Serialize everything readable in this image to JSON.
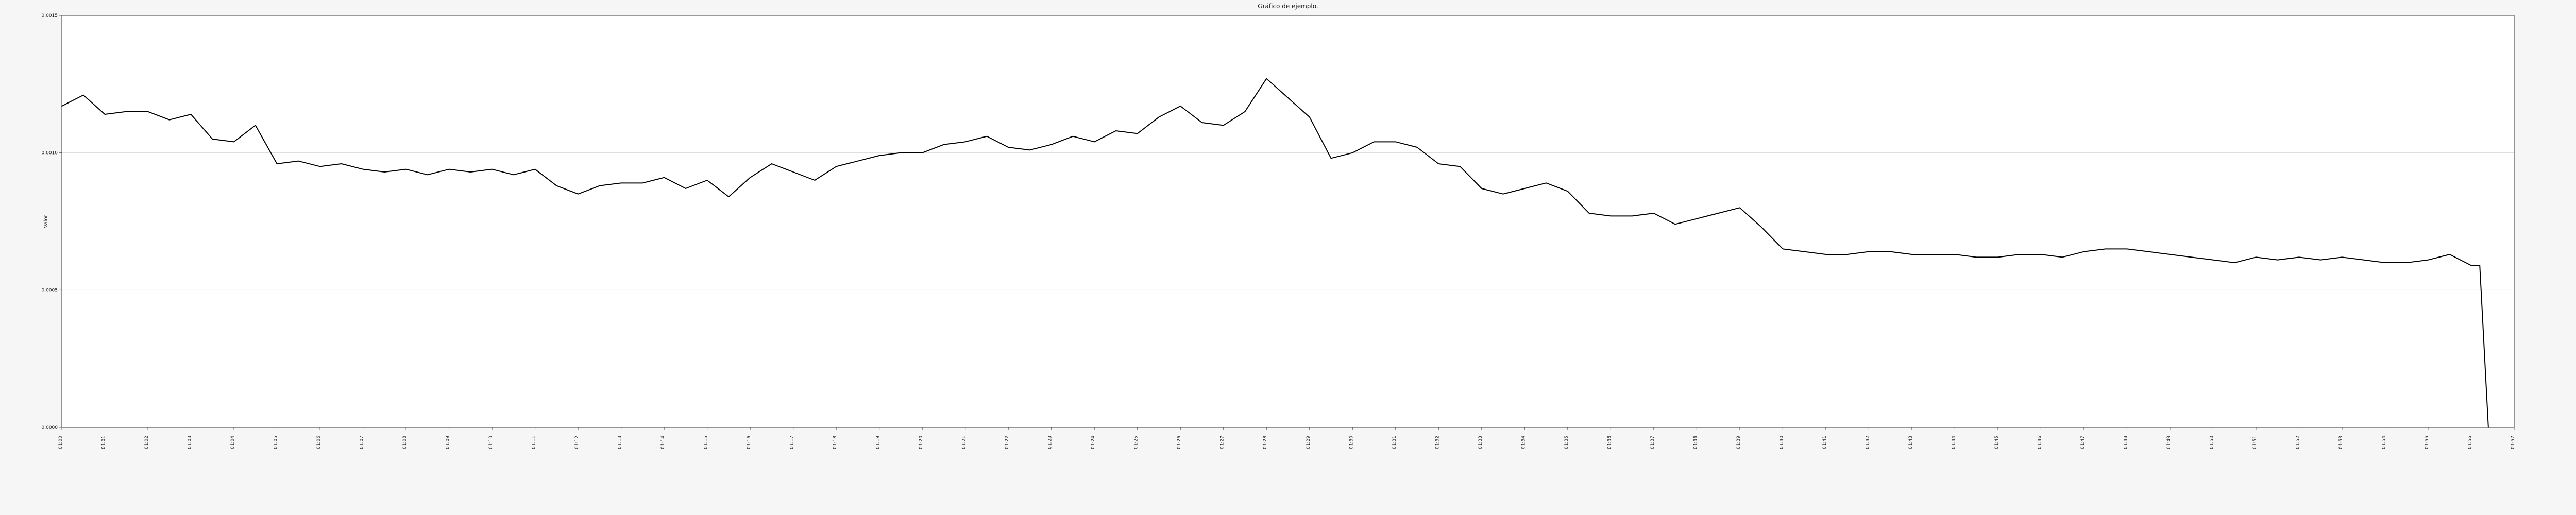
{
  "chart_data": {
    "type": "line",
    "title": "Gráfico de ejemplo.",
    "xlabel": "",
    "ylabel": "Valor",
    "xlim": [
      0,
      57
    ],
    "ylim": [
      0,
      0.0015
    ],
    "grid": true,
    "y_ticks": [
      "0.0000",
      "0.0005",
      "0.0010",
      "0.0015"
    ],
    "x_ticks": [
      "01:00",
      "01:01",
      "01:02",
      "01:03",
      "01:04",
      "01:05",
      "01:06",
      "01:07",
      "01:08",
      "01:09",
      "01:10",
      "01:11",
      "01:12",
      "01:13",
      "01:14",
      "01:15",
      "01:16",
      "01:17",
      "01:18",
      "01:19",
      "01:20",
      "01:21",
      "01:22",
      "01:23",
      "01:24",
      "01:25",
      "01:26",
      "01:27",
      "01:28",
      "01:29",
      "01:30",
      "01:31",
      "01:32",
      "01:33",
      "01:34",
      "01:35",
      "01:36",
      "01:37",
      "01:38",
      "01:39",
      "01:40",
      "01:41",
      "01:42",
      "01:43",
      "01:44",
      "01:45",
      "01:46",
      "01:47",
      "01:48",
      "01:49",
      "01:50",
      "01:51",
      "01:52",
      "01:53",
      "01:54",
      "01:55",
      "01:56",
      "01:57"
    ],
    "series": [
      {
        "name": "",
        "x": [
          0,
          0.5,
          1,
          1.5,
          2,
          2.5,
          3,
          3.5,
          4,
          4.5,
          5,
          5.5,
          6,
          6.5,
          7,
          7.5,
          8,
          8.5,
          9,
          9.5,
          10,
          10.5,
          11,
          11.5,
          12,
          12.5,
          13,
          13.5,
          14,
          14.5,
          15,
          15.5,
          16,
          16.5,
          17,
          17.5,
          18,
          18.5,
          19,
          19.5,
          20,
          20.5,
          21,
          21.5,
          22,
          22.5,
          23,
          23.5,
          24,
          24.5,
          25,
          25.5,
          26,
          26.5,
          27,
          27.5,
          28,
          28.5,
          29,
          29.5,
          30,
          30.5,
          31,
          31.5,
          32,
          32.5,
          33,
          33.5,
          34,
          34.5,
          35,
          35.5,
          36,
          36.5,
          37,
          37.5,
          38,
          38.5,
          39,
          39.5,
          40,
          40.5,
          41,
          41.5,
          42,
          42.5,
          43,
          43.5,
          44,
          44.5,
          45,
          45.5,
          46,
          46.5,
          47,
          47.5,
          48,
          48.5,
          49,
          49.5,
          50,
          50.5,
          51,
          51.5,
          52,
          52.5,
          53,
          53.5,
          54,
          54.5,
          55,
          55.5,
          56,
          56.2,
          56.4
        ],
        "values": [
          0.00117,
          0.00121,
          0.00114,
          0.00115,
          0.00115,
          0.00112,
          0.00114,
          0.00105,
          0.00104,
          0.0011,
          0.00096,
          0.00097,
          0.00095,
          0.00096,
          0.00094,
          0.00093,
          0.00094,
          0.00092,
          0.00094,
          0.00093,
          0.00094,
          0.00092,
          0.00094,
          0.00088,
          0.00085,
          0.00088,
          0.00089,
          0.00089,
          0.00091,
          0.00087,
          0.0009,
          0.00084,
          0.00091,
          0.00096,
          0.00093,
          0.0009,
          0.00095,
          0.00097,
          0.00099,
          0.001,
          0.001,
          0.00103,
          0.00104,
          0.00106,
          0.00102,
          0.00101,
          0.00103,
          0.00106,
          0.00104,
          0.00108,
          0.00107,
          0.00113,
          0.00117,
          0.00111,
          0.0011,
          0.00115,
          0.00127,
          0.0012,
          0.00113,
          0.00098,
          0.001,
          0.00104,
          0.00104,
          0.00102,
          0.00096,
          0.00095,
          0.00087,
          0.00085,
          0.00087,
          0.00089,
          0.00086,
          0.00078,
          0.00077,
          0.00077,
          0.00078,
          0.00074,
          0.00076,
          0.00078,
          0.0008,
          0.00073,
          0.00065,
          0.00064,
          0.00063,
          0.00063,
          0.00064,
          0.00064,
          0.00063,
          0.00063,
          0.00063,
          0.00062,
          0.00062,
          0.00063,
          0.00063,
          0.00062,
          0.00064,
          0.00065,
          0.00065,
          0.00064,
          0.00063,
          0.00062,
          0.00061,
          0.0006,
          0.00062,
          0.00061,
          0.00062,
          0.00061,
          0.00062,
          0.00061,
          0.0006,
          0.0006,
          0.00061,
          0.00063,
          0.00059,
          0.00059,
          0.0
        ]
      }
    ]
  }
}
